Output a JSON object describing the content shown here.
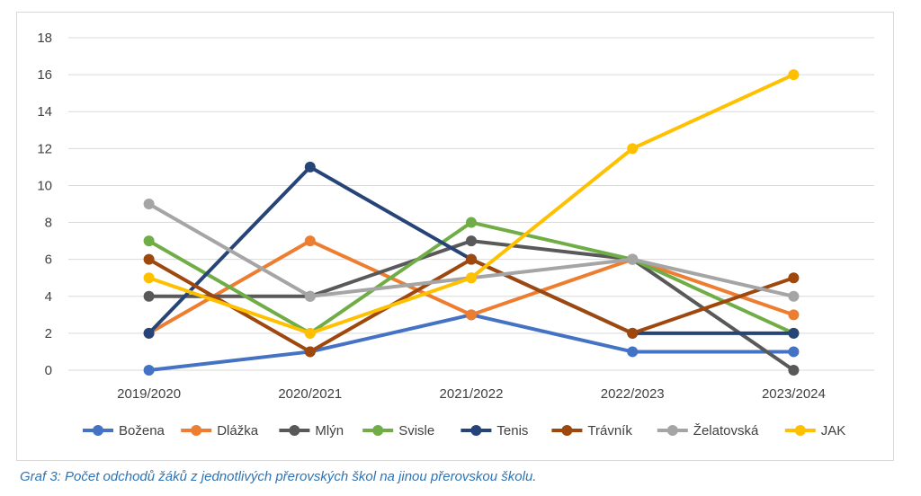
{
  "caption": "Graf 3: Počet odchodů žáků z jednotlivých přerovských škol na jinou přerovskou školu.",
  "chart_data": {
    "type": "line",
    "categories": [
      "2019/2020",
      "2020/2021",
      "2021/2022",
      "2022/2023",
      "2023/2024"
    ],
    "ylim": [
      0,
      18
    ],
    "yticks": [
      0,
      2,
      4,
      6,
      8,
      10,
      12,
      14,
      16,
      18
    ],
    "grid": true,
    "legend_position": "bottom",
    "series": [
      {
        "name": "Božena",
        "color": "#4472c4",
        "values": [
          0,
          1,
          3,
          1,
          1
        ]
      },
      {
        "name": "Dlážka",
        "color": "#ed7d31",
        "values": [
          2,
          7,
          3,
          6,
          3
        ]
      },
      {
        "name": "Mlýn",
        "color": "#595959",
        "values": [
          4,
          4,
          7,
          6,
          0
        ]
      },
      {
        "name": "Svisle",
        "color": "#70ad47",
        "values": [
          7,
          2,
          8,
          6,
          2
        ]
      },
      {
        "name": "Tenis",
        "color": "#264478",
        "values": [
          2,
          11,
          6,
          2,
          2
        ]
      },
      {
        "name": "Trávník",
        "color": "#9e480e",
        "values": [
          6,
          1,
          6,
          2,
          5
        ]
      },
      {
        "name": "Želatovská",
        "color": "#a5a5a5",
        "values": [
          9,
          4,
          5,
          6,
          4
        ]
      },
      {
        "name": "JAK",
        "color": "#ffc000",
        "values": [
          5,
          2,
          5,
          12,
          16
        ]
      }
    ]
  }
}
